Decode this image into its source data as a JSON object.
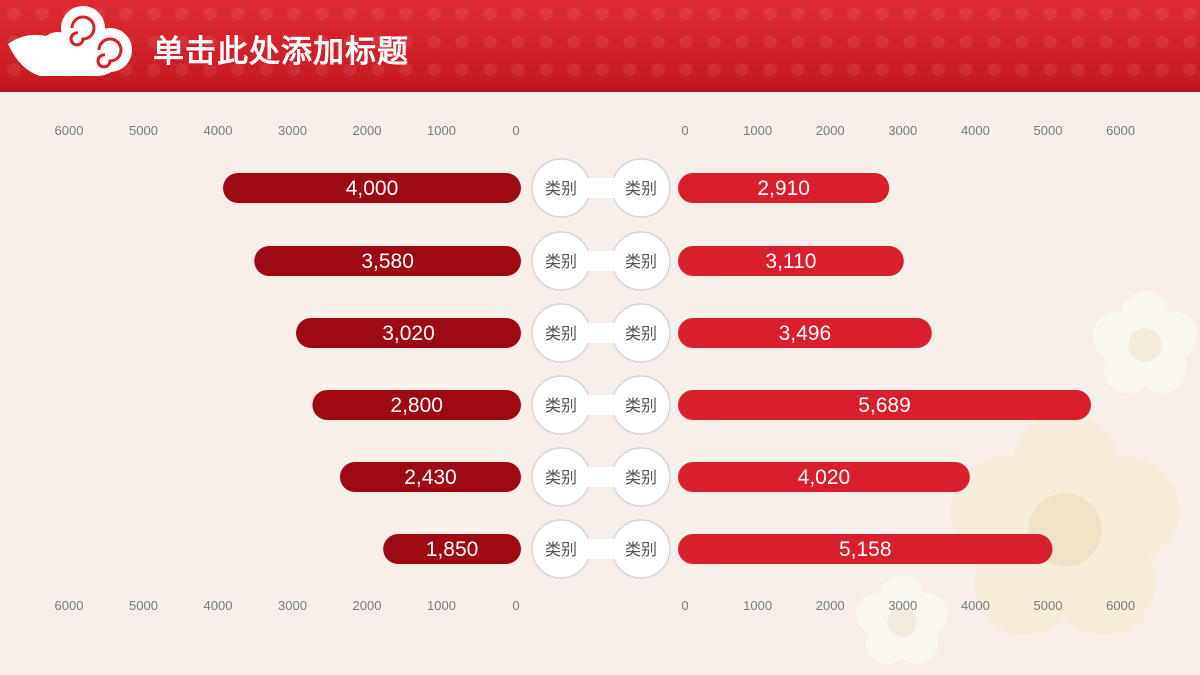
{
  "title": "单击此处添加标题",
  "colors": {
    "header": "#d2232a",
    "left_bar": "#9e0a12",
    "right_bar": "#da1f2c",
    "background": "#f8efea",
    "tick_text": "#7a7a7a"
  },
  "icons": [
    "auspicious-cloud-icon",
    "plum-blossom-icon"
  ],
  "chart_data": {
    "type": "bar",
    "orientation": "horizontal-butterfly",
    "categories": [
      "类别",
      "类别",
      "类别",
      "类别",
      "类别",
      "类别"
    ],
    "series": [
      {
        "side": "left",
        "values": [
          4000,
          3580,
          3020,
          2800,
          2430,
          1850
        ],
        "labels": [
          "4,000",
          "3,580",
          "3,020",
          "2,800",
          "2,430",
          "1,850"
        ],
        "color": "#9e0a12"
      },
      {
        "side": "right",
        "values": [
          2910,
          3110,
          3496,
          5689,
          4020,
          5158
        ],
        "labels": [
          "2,910",
          "3,110",
          "3,496",
          "5,689",
          "4,020",
          "5,158"
        ],
        "color": "#da1f2c"
      }
    ],
    "left_axis": {
      "ticks": [
        "6000",
        "5000",
        "4000",
        "3000",
        "2000",
        "1000",
        "0"
      ],
      "range": [
        0,
        6000
      ],
      "reversed": true
    },
    "right_axis": {
      "ticks": [
        "0",
        "1000",
        "2000",
        "3000",
        "4000",
        "5000",
        "6000"
      ],
      "range": [
        0,
        6000
      ]
    },
    "axis_ticks_shown": [
      "top",
      "bottom"
    ],
    "grid": false,
    "legend": "none"
  }
}
